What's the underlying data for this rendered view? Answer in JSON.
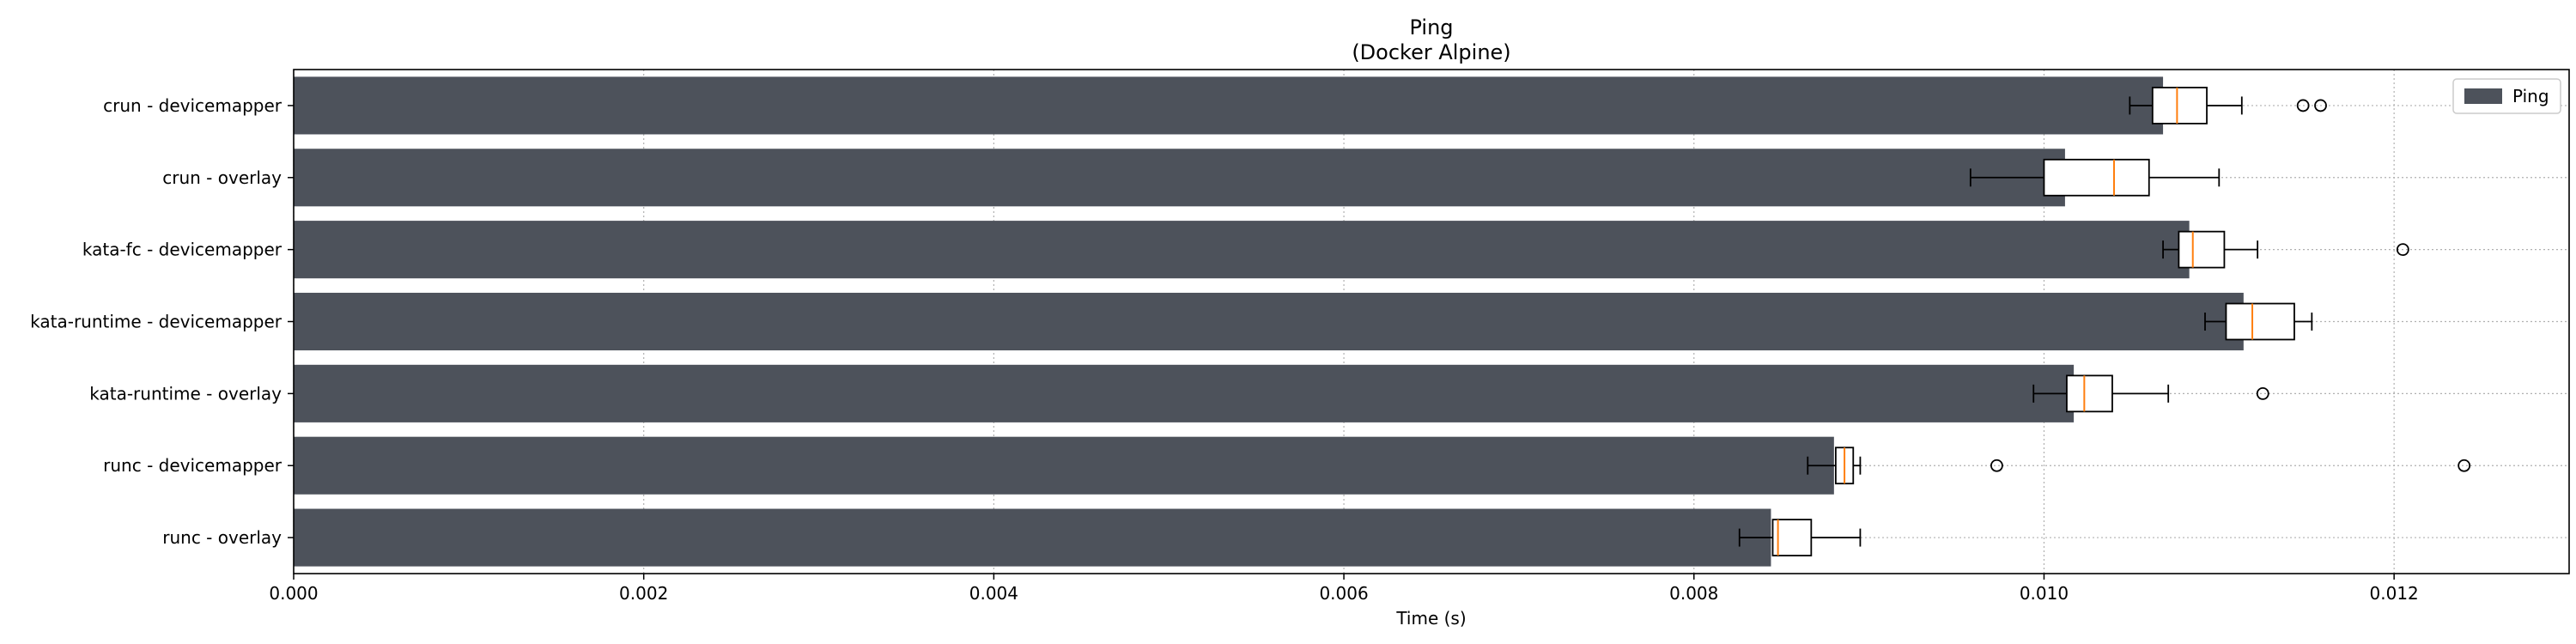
{
  "chart_data": {
    "type": "bar",
    "orientation": "horizontal",
    "title": "Ping",
    "subtitle": "(Docker Alpine)",
    "xlabel": "Time (s)",
    "ylabel": "",
    "xlim": [
      0,
      0.013
    ],
    "xticks": [
      "0.000",
      "0.002",
      "0.004",
      "0.006",
      "0.008",
      "0.010",
      "0.012"
    ],
    "grid": true,
    "legend": {
      "position": "top-right",
      "entries": [
        "Ping"
      ]
    },
    "colors": {
      "bar": "#4d525b",
      "median": "#ff7f0e",
      "box": "#000000",
      "grid": "#b0b0b0"
    },
    "categories": [
      "crun - devicemapper",
      "crun - overlay",
      "kata-fc - devicemapper",
      "kata-runtime - devicemapper",
      "kata-runtime - overlay",
      "runc - devicemapper",
      "runc - overlay"
    ],
    "series": [
      {
        "name": "Ping",
        "values": [
          0.01068,
          0.01012,
          0.01083,
          0.01114,
          0.01017,
          0.0088,
          0.00844
        ]
      }
    ],
    "boxplots": [
      {
        "whislo": 0.01049,
        "q1": 0.01062,
        "med": 0.01076,
        "q3": 0.01093,
        "whishi": 0.01113,
        "fliers": [
          0.01148,
          0.01158
        ]
      },
      {
        "whislo": 0.00958,
        "q1": 0.01,
        "med": 0.0104,
        "q3": 0.0106,
        "whishi": 0.011,
        "fliers": []
      },
      {
        "whislo": 0.01068,
        "q1": 0.01077,
        "med": 0.01085,
        "q3": 0.01103,
        "whishi": 0.01122,
        "fliers": [
          0.01205
        ]
      },
      {
        "whislo": 0.01092,
        "q1": 0.01104,
        "med": 0.01119,
        "q3": 0.01143,
        "whishi": 0.01153,
        "fliers": []
      },
      {
        "whislo": 0.00994,
        "q1": 0.01013,
        "med": 0.01023,
        "q3": 0.01039,
        "whishi": 0.01071,
        "fliers": [
          0.01125
        ]
      },
      {
        "whislo": 0.00865,
        "q1": 0.00881,
        "med": 0.00886,
        "q3": 0.00891,
        "whishi": 0.00895,
        "fliers": [
          0.00973,
          0.0124
        ]
      },
      {
        "whislo": 0.00826,
        "q1": 0.00845,
        "med": 0.00848,
        "q3": 0.00867,
        "whishi": 0.00895,
        "fliers": []
      }
    ]
  }
}
